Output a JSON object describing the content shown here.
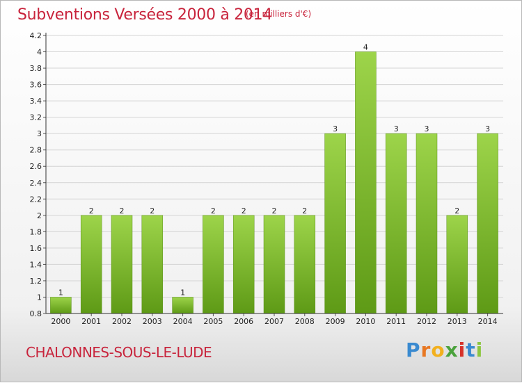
{
  "chart_data": {
    "type": "bar",
    "title": "Subventions Versées 2000 à 2014",
    "subtitle": "(en milliers d'€)",
    "categories": [
      "2000",
      "2001",
      "2002",
      "2003",
      "2004",
      "2005",
      "2006",
      "2007",
      "2008",
      "2009",
      "2010",
      "2011",
      "2012",
      "2013",
      "2014"
    ],
    "values": [
      1,
      2,
      2,
      2,
      1,
      2,
      2,
      2,
      2,
      3,
      4,
      3,
      3,
      2,
      3
    ],
    "data_labels": [
      "1",
      "2",
      "2",
      "2",
      "1",
      "2",
      "2",
      "2",
      "2",
      "3",
      "4",
      "3",
      "3",
      "2",
      "3"
    ],
    "y_ticks": [
      "0.8",
      "1",
      "1.2",
      "1.4",
      "1.6",
      "1.8",
      "2",
      "2.2",
      "2.4",
      "2.6",
      "2.8",
      "3",
      "3.2",
      "3.4",
      "3.6",
      "3.8",
      "4",
      "4.2"
    ],
    "ylim": [
      0.8,
      4.2
    ],
    "grid": true,
    "bar_color": "#7cb82f"
  },
  "footer": {
    "town": "CHALONNES-SOUS-LE-LUDE",
    "logo_letters": [
      "P",
      "r",
      "o",
      "x",
      "i",
      "t",
      "i"
    ],
    "logo_colors": [
      "#3a8ad0",
      "#e87722",
      "#f2b01e",
      "#4aa23c",
      "#d6322a",
      "#3a8ad0",
      "#8cc63f"
    ]
  }
}
